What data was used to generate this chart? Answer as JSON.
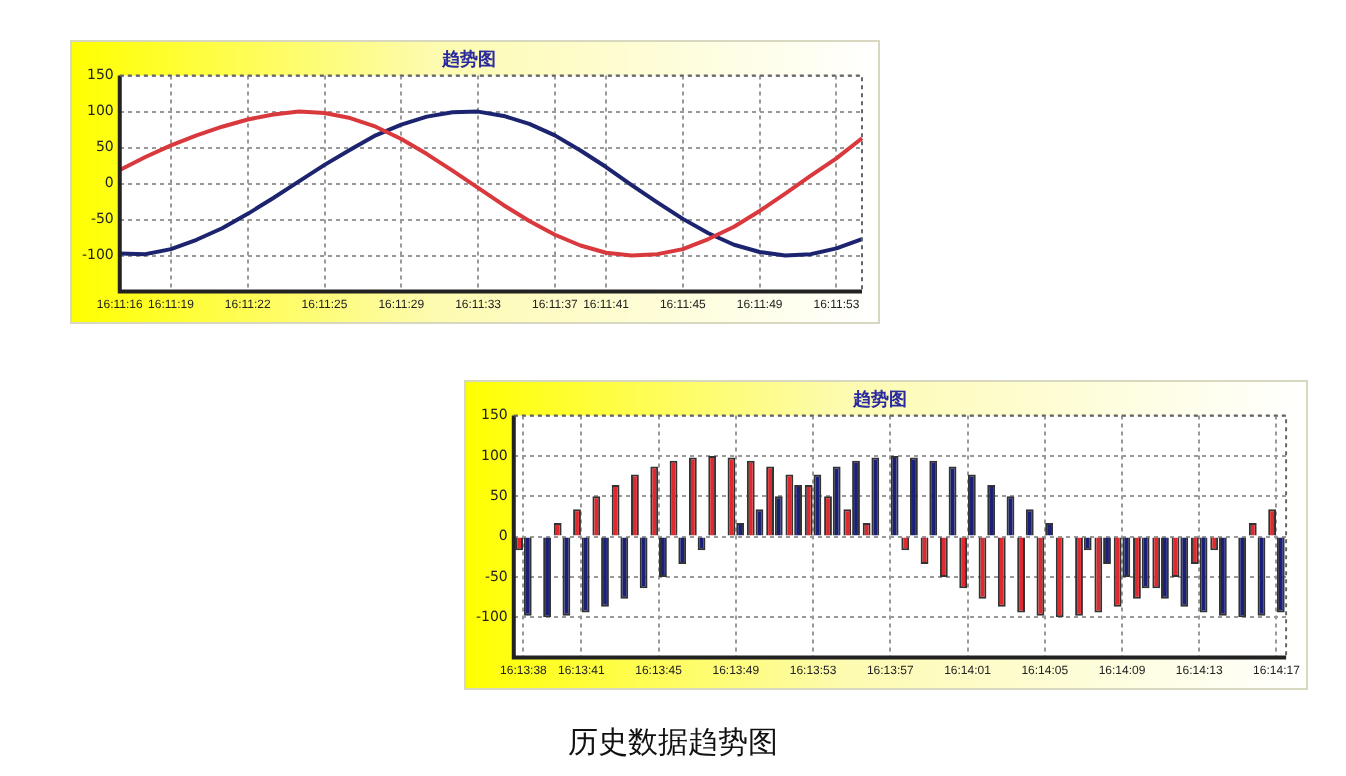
{
  "chart_data": [
    {
      "type": "line",
      "title": "趋势图",
      "categories": [
        "16:11:16",
        null,
        "16:11:19",
        null,
        null,
        "16:11:22",
        null,
        null,
        "16:11:25",
        null,
        null,
        "16:11:29",
        null,
        null,
        "16:11:33",
        null,
        null,
        "16:11:37",
        null,
        "16:11:41",
        null,
        null,
        "16:11:45",
        null,
        null,
        "16:11:49",
        null,
        null,
        "16:11:53",
        null
      ],
      "series": [
        {
          "color": "#d9393d",
          "values": [
            19,
            37,
            53,
            67,
            79,
            89,
            96,
            100,
            98,
            91,
            79,
            62,
            41,
            18,
            -6,
            -30,
            -52,
            -71,
            -86,
            -96,
            -100,
            -98,
            -91,
            -77,
            -60,
            -38,
            -14,
            11,
            35,
            63
          ]
        },
        {
          "color": "#1c2470",
          "values": [
            -97,
            -98,
            -91,
            -78,
            -62,
            -42,
            -20,
            3,
            26,
            47,
            67,
            82,
            93,
            99,
            100,
            94,
            83,
            67,
            46,
            23,
            -2,
            -26,
            -49,
            -69,
            -85,
            -95,
            -100,
            -98,
            -90,
            -77
          ]
        }
      ],
      "ylim": [
        -150,
        150
      ],
      "yticks": [
        {
          "value": -150,
          "label": null
        },
        -100,
        -50,
        0,
        50,
        100,
        150
      ],
      "grid": true,
      "legend": false,
      "marker": "none",
      "line_style": "solid"
    },
    {
      "type": "bar",
      "title": "趋势图",
      "categories": [
        "16:13:38",
        null,
        null,
        "16:13:41",
        null,
        null,
        null,
        "16:13:45",
        null,
        null,
        null,
        "16:13:49",
        null,
        null,
        null,
        "16:13:53",
        null,
        null,
        null,
        "16:13:57",
        null,
        null,
        null,
        "16:14:01",
        null,
        null,
        null,
        "16:14:05",
        null,
        null,
        null,
        "16:14:09",
        null,
        null,
        null,
        "16:14:13",
        null,
        null,
        null,
        "16:14:17"
      ],
      "series": [
        {
          "color": "#e0292f",
          "values": [
            -17,
            0,
            17,
            34,
            50,
            64,
            77,
            87,
            94,
            98,
            100,
            98,
            94,
            87,
            77,
            64,
            50,
            34,
            17,
            0,
            -17,
            -34,
            -50,
            -64,
            -77,
            -87,
            -94,
            -98,
            -100,
            -98,
            -94,
            -87,
            -77,
            -64,
            -50,
            -34,
            -17,
            0,
            17,
            34
          ]
        },
        {
          "color": "#1a1f78",
          "values": [
            -98,
            -100,
            -98,
            -94,
            -87,
            -77,
            -64,
            -50,
            -34,
            -17,
            0,
            17,
            34,
            50,
            64,
            77,
            87,
            94,
            98,
            100,
            98,
            94,
            87,
            77,
            64,
            50,
            34,
            17,
            0,
            -17,
            -34,
            -50,
            -64,
            -77,
            -87,
            -94,
            -98,
            -100,
            -98,
            -94
          ]
        }
      ],
      "ylim": [
        -150,
        150
      ],
      "yticks": [
        {
          "value": -150,
          "label": null
        },
        -100,
        -50,
        0,
        50,
        100,
        150
      ],
      "grid": true,
      "legend": false,
      "annotations": [
        "历史数据趋势图"
      ]
    }
  ]
}
